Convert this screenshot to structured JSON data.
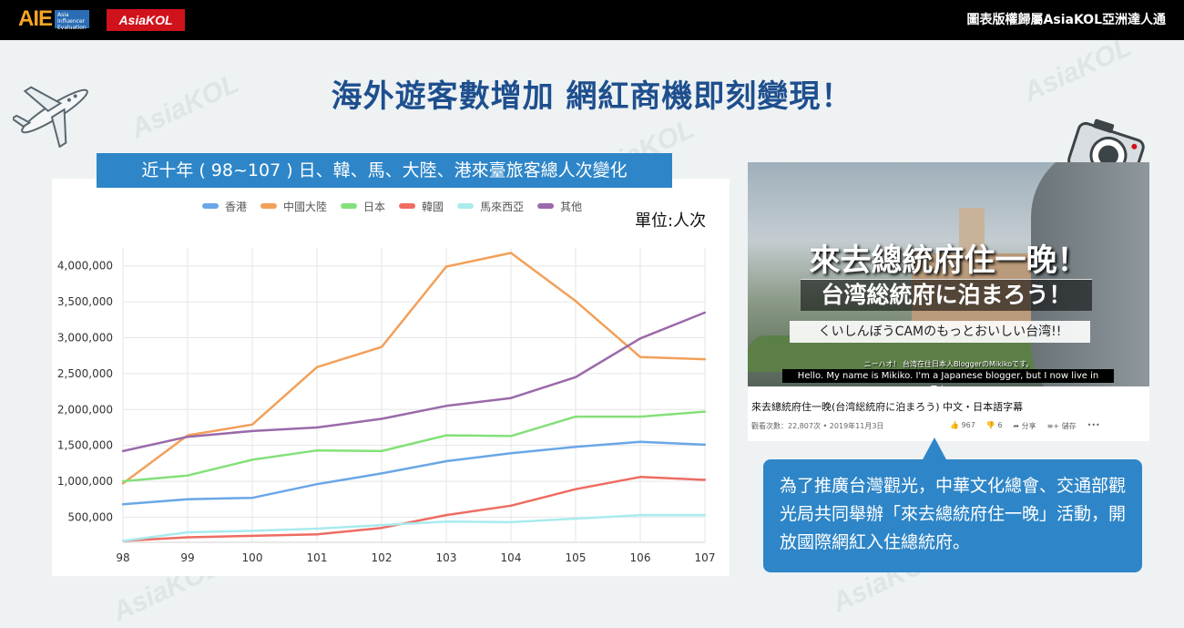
{
  "header": {
    "logo_aie": "AIE",
    "logo_aie_sub": "Asia Influencer Evaluation",
    "logo_asiakol": "AsiaKOL",
    "copyright": "圖表版權歸屬AsiaKOL亞洲達人通"
  },
  "watermark_text": "AsiaKOL",
  "main_title": "海外遊客數增加  網紅商機即刻變現！",
  "chart_title": "近十年 ( 98~107 ) 日、韓、馬、大陸、港來臺旅客總人次變化",
  "unit_label": "單位:人次",
  "chart_data": {
    "type": "line",
    "categories": [
      "98",
      "99",
      "100",
      "101",
      "102",
      "103",
      "104",
      "105",
      "106",
      "107"
    ],
    "series": [
      {
        "name": "香港",
        "color": "#6aa7e6",
        "values": [
          680000,
          750000,
          770000,
          960000,
          1110000,
          1280000,
          1390000,
          1480000,
          1550000,
          1510000
        ]
      },
      {
        "name": "中國大陸",
        "color": "#f2a05a",
        "values": [
          970000,
          1640000,
          1790000,
          2590000,
          2870000,
          3990000,
          4180000,
          3510000,
          2730000,
          2700000
        ]
      },
      {
        "name": "日本",
        "color": "#84e07a",
        "values": [
          1000000,
          1080000,
          1300000,
          1430000,
          1420000,
          1640000,
          1630000,
          1900000,
          1900000,
          1970000
        ]
      },
      {
        "name": "韓國",
        "color": "#ee6c62",
        "values": [
          170000,
          220000,
          240000,
          260000,
          350000,
          530000,
          660000,
          890000,
          1060000,
          1020000
        ]
      },
      {
        "name": "馬來西亞",
        "color": "#a9ebee",
        "values": [
          170000,
          290000,
          310000,
          340000,
          390000,
          440000,
          430000,
          480000,
          530000,
          530000
        ]
      },
      {
        "name": "其他",
        "color": "#9a6aaa",
        "values": [
          1420000,
          1620000,
          1700000,
          1750000,
          1870000,
          2050000,
          2160000,
          2450000,
          2990000,
          3350000
        ]
      }
    ],
    "yticks": [
      "500,000",
      "1,000,000",
      "1,500,000",
      "2,000,000",
      "2,500,000",
      "3,000,000",
      "3,500,000",
      "4,000,000"
    ],
    "ylim": [
      150000,
      4250000
    ],
    "grid": true,
    "legend_position": "top"
  },
  "video": {
    "thumb_title_1": "來去總統府住一晚！",
    "thumb_title_2": "台湾総統府に泊まろう！",
    "thumb_title_3": "くいしんぼうCAMのもっとおいしい台湾!!",
    "subtitle_jp": "ニーハオ！ 台湾在住日本人BloggerのMikikoです。",
    "subtitle_en": "Hello. My name is Mikiko. I'm a Japanese blogger, but I now live in Taiwan.",
    "title": "來去總統府住一晚(台湾総統府に泊まろう) 中文・日本語字幕",
    "views": "觀看次數：22,807次 • 2019年11月3日",
    "likes": "967",
    "dislikes": "6",
    "share": "分享",
    "save": "儲存",
    "more": "•••"
  },
  "info_text": "為了推廣台灣觀光，中華文化總會、交通部觀光局共同舉辦「來去總統府住一晚」活動，開放國際網紅入住總統府。"
}
